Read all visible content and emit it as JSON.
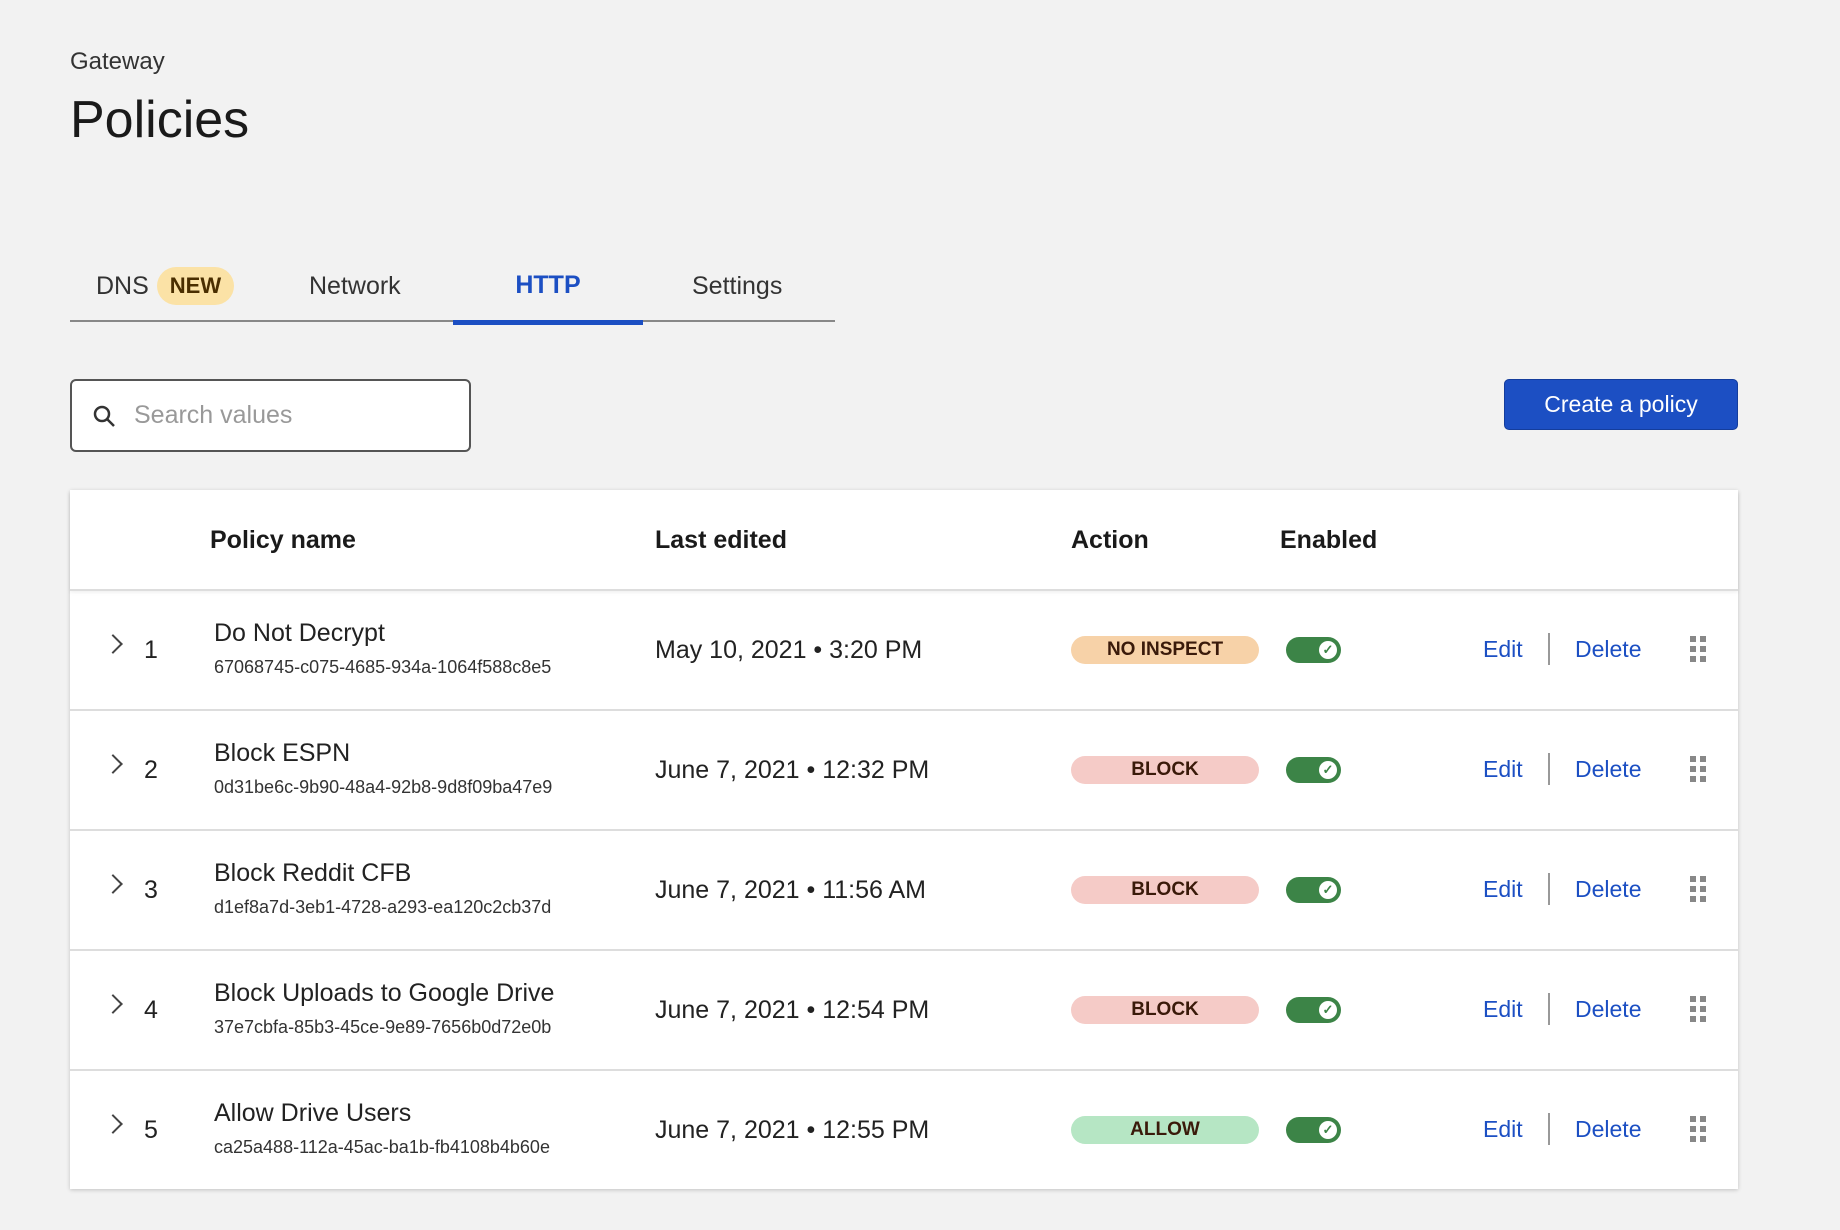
{
  "header": {
    "breadcrumb": "Gateway",
    "title": "Policies"
  },
  "tabs": [
    {
      "label": "DNS",
      "badge": "NEW"
    },
    {
      "label": "Network"
    },
    {
      "label": "HTTP",
      "active": true
    },
    {
      "label": "Settings"
    }
  ],
  "search": {
    "placeholder": "Search values",
    "value": ""
  },
  "toolbar": {
    "create_label": "Create a policy"
  },
  "table": {
    "columns": [
      "Policy name",
      "Last edited",
      "Action",
      "Enabled"
    ],
    "rows": [
      {
        "num": "1",
        "name": "Do Not Decrypt",
        "id": "67068745-c075-4685-934a-1064f588c8e5",
        "edited": "May 10, 2021 • 3:20 PM",
        "action": "NO INSPECT",
        "enabled": true
      },
      {
        "num": "2",
        "name": "Block ESPN",
        "id": "0d31be6c-9b90-48a4-92b8-9d8f09ba47e9",
        "edited": "June 7, 2021 • 12:32 PM",
        "action": "BLOCK",
        "enabled": true
      },
      {
        "num": "3",
        "name": "Block Reddit CFB",
        "id": "d1ef8a7d-3eb1-4728-a293-ea120c2cb37d",
        "edited": "June 7, 2021 • 11:56 AM",
        "action": "BLOCK",
        "enabled": true
      },
      {
        "num": "4",
        "name": "Block Uploads to Google Drive",
        "id": "37e7cbfa-85b3-45ce-9e89-7656b0d72e0b",
        "edited": "June 7, 2021 • 12:54 PM",
        "action": "BLOCK",
        "enabled": true
      },
      {
        "num": "5",
        "name": "Allow Drive Users",
        "id": "ca25a488-112a-45ac-ba1b-fb4108b4b60e",
        "edited": "June 7, 2021 • 12:55 PM",
        "action": "ALLOW",
        "enabled": true
      }
    ],
    "edit_label": "Edit",
    "delete_label": "Delete"
  },
  "colors": {
    "accent": "#1c4fc3",
    "toggle_on": "#3c8447",
    "no_inspect": "#f7d2a8",
    "block": "#f5cbc7",
    "allow": "#b6e6c4"
  }
}
